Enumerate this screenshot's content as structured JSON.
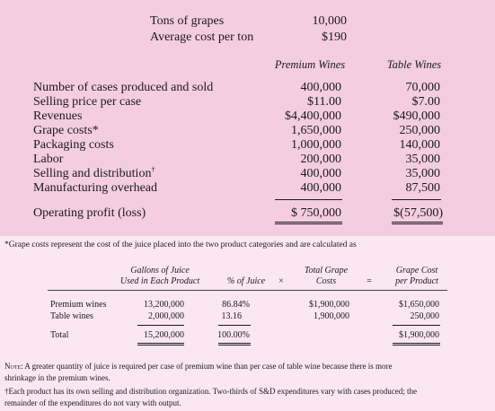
{
  "top_block": {
    "tons_label": "Tons of grapes",
    "tons_value": "10,000",
    "avg_cost_label": "Average cost per ton",
    "avg_cost_value": "$190"
  },
  "columns": {
    "premium": "Premium Wines",
    "table": "Table Wines"
  },
  "rows": [
    {
      "label": "Number of cases produced and sold",
      "premium": "400,000",
      "table": "70,000"
    },
    {
      "label": "Selling price per case",
      "premium": "$11.00",
      "table": "$7.00"
    },
    {
      "label": "Revenues",
      "premium": "$4,400,000",
      "table": "$490,000"
    },
    {
      "label": "Grape costs*",
      "premium": "1,650,000",
      "table": "250,000"
    },
    {
      "label": "Packaging costs",
      "premium": "1,000,000",
      "table": "140,000"
    },
    {
      "label": "Labor",
      "premium": "200,000",
      "table": "35,000"
    },
    {
      "label": "Selling and distribution",
      "premium": "400,000",
      "table": "35,000"
    },
    {
      "label": "Manufacturing overhead",
      "premium": "400,000",
      "table": "87,500"
    }
  ],
  "dagger": "†",
  "operating_profit": {
    "label": "Operating profit (loss)",
    "premium": "$ 750,000",
    "table": "$(57,500)"
  },
  "footnote_star": "*Grape costs represent the cost of the juice placed into the two product categories and are calculated as",
  "sub_table": {
    "headers": {
      "gallons_l1": "Gallons of Juice",
      "gallons_l2": "Used in Each Product",
      "pct": "% of Juice",
      "times": "×",
      "total_l1": "Total Grape",
      "total_l2": "Costs",
      "equals": "=",
      "cost_l1": "Grape Cost",
      "cost_l2": "per Product"
    },
    "rows": [
      {
        "label": "Premium wines",
        "gallons": "13,200,000",
        "pct": "86.84%",
        "total": "$1,900,000",
        "cost": "$1,650,000"
      },
      {
        "label": "Table wines",
        "gallons": "2,000,000",
        "pct": "13.16",
        "total": "1,900,000",
        "cost": "250,000"
      }
    ],
    "total_row": {
      "label": "Total",
      "gallons": "15,200,000",
      "pct": "100.00%",
      "cost": "$1,900,000"
    }
  },
  "note_label": "Note:",
  "note_text": " A greater quantity of juice is required per case of premium wine than per case of table wine because there is more",
  "note_text_2": "shrinkage in the premium wines.",
  "dagger_note": "†Each product has its own selling and distribution organization. Two-thirds of S&D expenditures vary with cases produced; the",
  "dagger_note_2": "remainder of the expenditures do not vary with output."
}
